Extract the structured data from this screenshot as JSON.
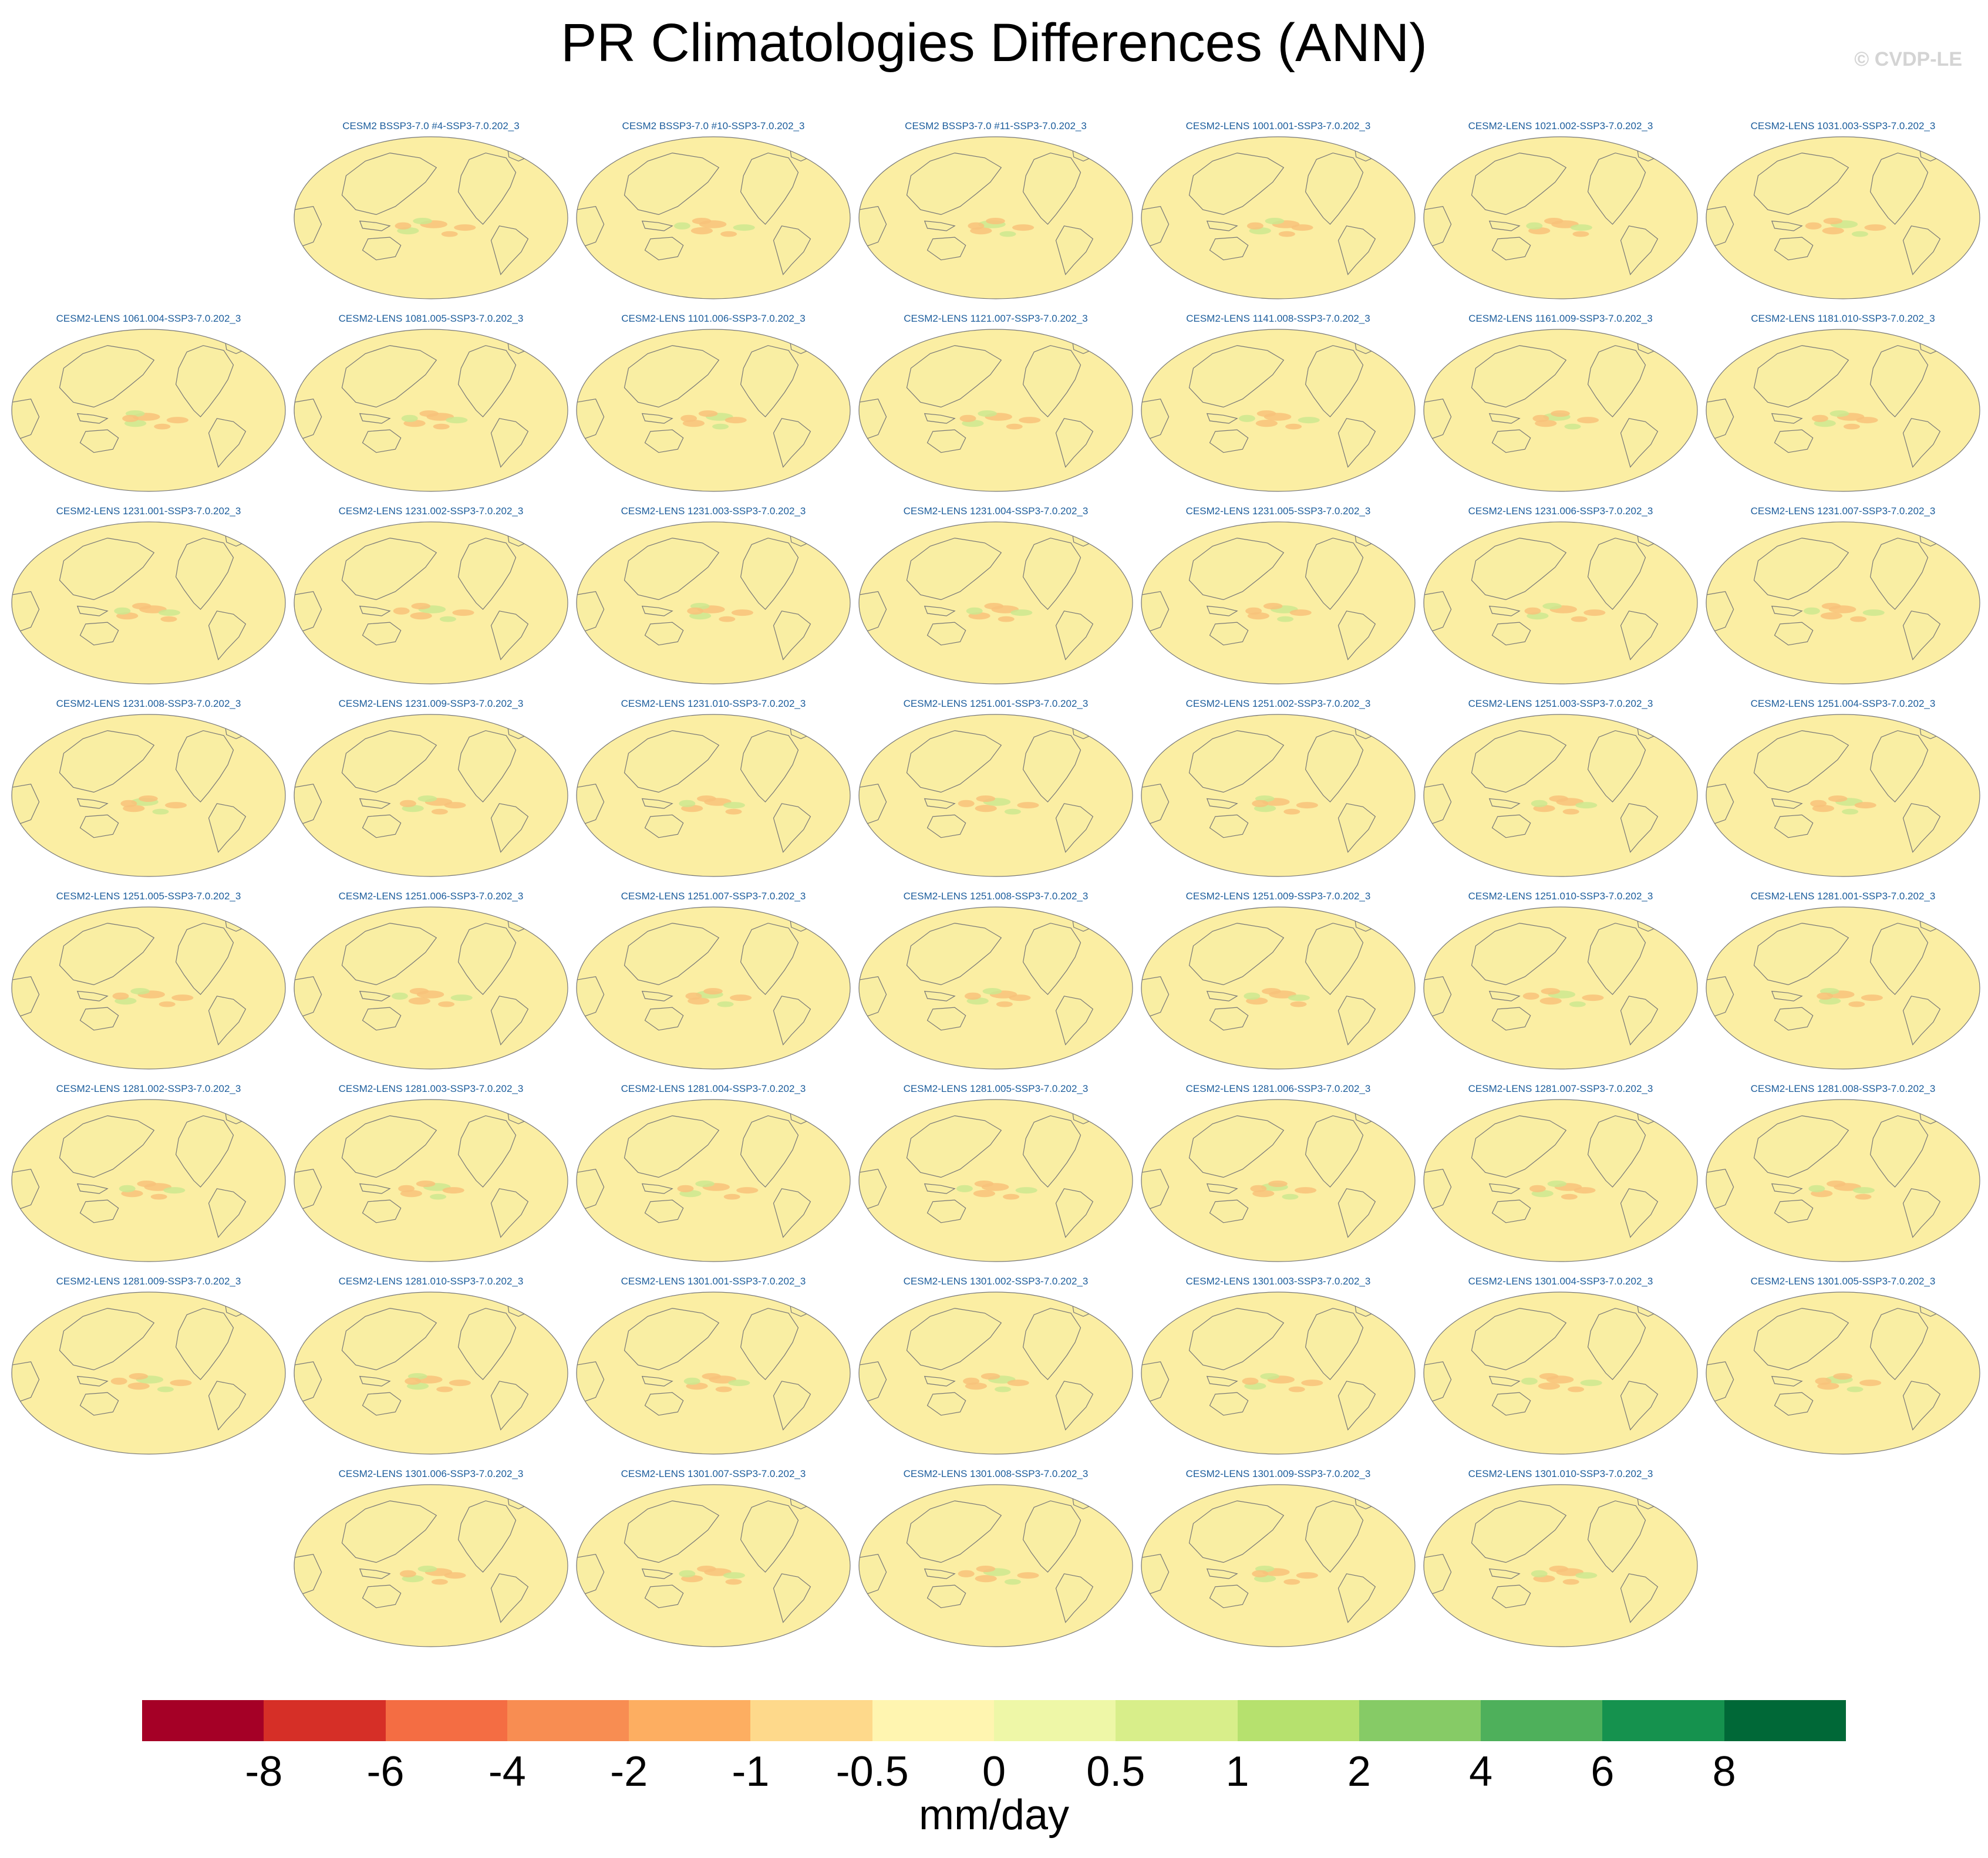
{
  "title": "PR Climatologies Differences (ANN)",
  "credit": "© CVDP-LE",
  "units": "mm/day",
  "colorbar": {
    "colors": [
      "#a50026",
      "#d62f27",
      "#f46d43",
      "#f88d52",
      "#fdae61",
      "#fed98b",
      "#fff5b0",
      "#eef7a7",
      "#d8ee8a",
      "#b6e16e",
      "#86cb66",
      "#4eb05b",
      "#15924e",
      "#006837"
    ],
    "labels": [
      "-8",
      "-6",
      "-4",
      "-2",
      "-1",
      "-0.5",
      "0",
      "0.5",
      "1",
      "2",
      "4",
      "6",
      "8"
    ]
  },
  "map_colors": {
    "ocean": "#fbeea3",
    "land": "#f5eea4",
    "coast": "#777777",
    "neg": "#f8c27a",
    "pos": "#cde88f"
  },
  "panels": [
    {
      "label": "CESM2 BSSP3-7.0 #4-SSP3-7.0.202_3"
    },
    {
      "label": "CESM2 BSSP3-7.0 #10-SSP3-7.0.202_3"
    },
    {
      "label": "CESM2 BSSP3-7.0 #11-SSP3-7.0.202_3"
    },
    {
      "label": "CESM2-LENS 1001.001-SSP3-7.0.202_3"
    },
    {
      "label": "CESM2-LENS 1021.002-SSP3-7.0.202_3"
    },
    {
      "label": "CESM2-LENS 1031.003-SSP3-7.0.202_3"
    },
    {
      "label": "CESM2-LENS 1061.004-SSP3-7.0.202_3"
    },
    {
      "label": "CESM2-LENS 1081.005-SSP3-7.0.202_3"
    },
    {
      "label": "CESM2-LENS 1101.006-SSP3-7.0.202_3"
    },
    {
      "label": "CESM2-LENS 1121.007-SSP3-7.0.202_3"
    },
    {
      "label": "CESM2-LENS 1141.008-SSP3-7.0.202_3"
    },
    {
      "label": "CESM2-LENS 1161.009-SSP3-7.0.202_3"
    },
    {
      "label": "CESM2-LENS 1181.010-SSP3-7.0.202_3"
    },
    {
      "label": "CESM2-LENS 1231.001-SSP3-7.0.202_3"
    },
    {
      "label": "CESM2-LENS 1231.002-SSP3-7.0.202_3"
    },
    {
      "label": "CESM2-LENS 1231.003-SSP3-7.0.202_3"
    },
    {
      "label": "CESM2-LENS 1231.004-SSP3-7.0.202_3"
    },
    {
      "label": "CESM2-LENS 1231.005-SSP3-7.0.202_3"
    },
    {
      "label": "CESM2-LENS 1231.006-SSP3-7.0.202_3"
    },
    {
      "label": "CESM2-LENS 1231.007-SSP3-7.0.202_3"
    },
    {
      "label": "CESM2-LENS 1231.008-SSP3-7.0.202_3"
    },
    {
      "label": "CESM2-LENS 1231.009-SSP3-7.0.202_3"
    },
    {
      "label": "CESM2-LENS 1231.010-SSP3-7.0.202_3"
    },
    {
      "label": "CESM2-LENS 1251.001-SSP3-7.0.202_3"
    },
    {
      "label": "CESM2-LENS 1251.002-SSP3-7.0.202_3"
    },
    {
      "label": "CESM2-LENS 1251.003-SSP3-7.0.202_3"
    },
    {
      "label": "CESM2-LENS 1251.004-SSP3-7.0.202_3"
    },
    {
      "label": "CESM2-LENS 1251.005-SSP3-7.0.202_3"
    },
    {
      "label": "CESM2-LENS 1251.006-SSP3-7.0.202_3"
    },
    {
      "label": "CESM2-LENS 1251.007-SSP3-7.0.202_3"
    },
    {
      "label": "CESM2-LENS 1251.008-SSP3-7.0.202_3"
    },
    {
      "label": "CESM2-LENS 1251.009-SSP3-7.0.202_3"
    },
    {
      "label": "CESM2-LENS 1251.010-SSP3-7.0.202_3"
    },
    {
      "label": "CESM2-LENS 1281.001-SSP3-7.0.202_3"
    },
    {
      "label": "CESM2-LENS 1281.002-SSP3-7.0.202_3"
    },
    {
      "label": "CESM2-LENS 1281.003-SSP3-7.0.202_3"
    },
    {
      "label": "CESM2-LENS 1281.004-SSP3-7.0.202_3"
    },
    {
      "label": "CESM2-LENS 1281.005-SSP3-7.0.202_3"
    },
    {
      "label": "CESM2-LENS 1281.006-SSP3-7.0.202_3"
    },
    {
      "label": "CESM2-LENS 1281.007-SSP3-7.0.202_3"
    },
    {
      "label": "CESM2-LENS 1281.008-SSP3-7.0.202_3"
    },
    {
      "label": "CESM2-LENS 1281.009-SSP3-7.0.202_3"
    },
    {
      "label": "CESM2-LENS 1281.010-SSP3-7.0.202_3"
    },
    {
      "label": "CESM2-LENS 1301.001-SSP3-7.0.202_3"
    },
    {
      "label": "CESM2-LENS 1301.002-SSP3-7.0.202_3"
    },
    {
      "label": "CESM2-LENS 1301.003-SSP3-7.0.202_3"
    },
    {
      "label": "CESM2-LENS 1301.004-SSP3-7.0.202_3"
    },
    {
      "label": "CESM2-LENS 1301.005-SSP3-7.0.202_3"
    },
    {
      "label": "CESM2-LENS 1301.006-SSP3-7.0.202_3"
    },
    {
      "label": "CESM2-LENS 1301.007-SSP3-7.0.202_3"
    },
    {
      "label": "CESM2-LENS 1301.008-SSP3-7.0.202_3"
    },
    {
      "label": "CESM2-LENS 1301.009-SSP3-7.0.202_3"
    },
    {
      "label": "CESM2-LENS 1301.010-SSP3-7.0.202_3"
    }
  ]
}
